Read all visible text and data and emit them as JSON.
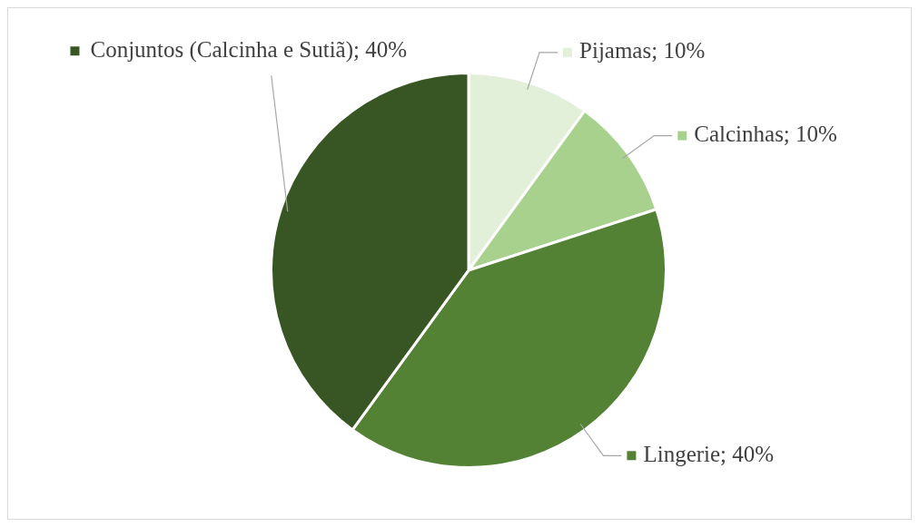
{
  "chart_data": {
    "type": "pie",
    "categories": [
      "Pijamas",
      "Calcinhas",
      "Lingerie",
      "Conjuntos (Calcinha e Sutiã)"
    ],
    "values": [
      10,
      10,
      40,
      40
    ],
    "value_labels": [
      "10%",
      "10%",
      "40%",
      "40%"
    ],
    "colors": [
      "#e2efd9",
      "#a9d18e",
      "#548235",
      "#375623"
    ],
    "legend": "right"
  }
}
